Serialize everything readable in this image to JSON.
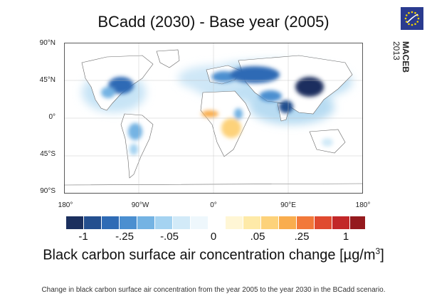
{
  "title": "BCadd (2030) - Base year (2005)",
  "badge": {
    "name": "MACEB",
    "year": "2013",
    "colors": {
      "background": "#2a3b8f",
      "stars": "#f4d400"
    }
  },
  "map": {
    "lat_labels": [
      "90°N",
      "45°N",
      "0°",
      "45°S",
      "90°S"
    ],
    "lon_labels": [
      "180°",
      "90°W",
      "0°",
      "90°E",
      "180°"
    ],
    "ocean_color": "#ffffff",
    "coast_color": "#555555"
  },
  "colorbar": {
    "tick_labels": [
      "-1",
      "-.25",
      "-.05",
      "0",
      ".05",
      ".25",
      "1"
    ],
    "neg_colors": [
      "#1b2f5e",
      "#244f8f",
      "#2f6bb5",
      "#4b8fd0",
      "#74b3e3",
      "#a5d3f1",
      "#d2eaf8",
      "#eef7fc"
    ],
    "pos_colors": [
      "#fff6d5",
      "#feeaa8",
      "#fdd27a",
      "#f9ad4e",
      "#f2793a",
      "#e04a2f",
      "#c22728",
      "#951a1e"
    ]
  },
  "axis_title": "Black carbon surface air concentration change [µg/m",
  "axis_title_sup": "3",
  "axis_title_end": "]",
  "caption": "Change in black carbon surface air concentration from the year 2005 to the year 2030 in the BCadd scenario."
}
